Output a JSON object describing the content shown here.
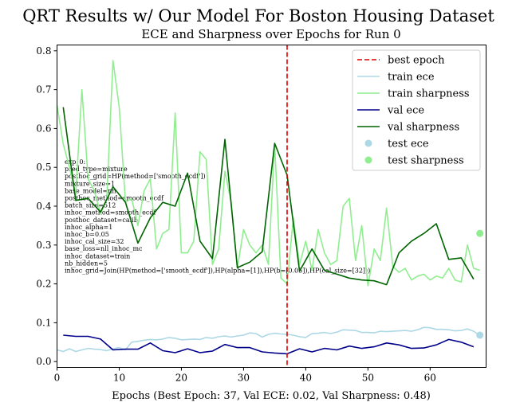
{
  "chart_data": {
    "type": "line",
    "suptitle": "QRT Results w/ Our Model For Boston Housing Dataset",
    "title": "ECE and Sharpness over Epochs for Run 0",
    "xlabel": "Epochs (Best Epoch: 37, Val ECE: 0.02, Val Sharpness: 0.48)",
    "ylabel": "",
    "xlim": [
      0,
      69
    ],
    "ylim": [
      -0.015,
      0.815
    ],
    "x_ticks": [
      0,
      10,
      20,
      30,
      40,
      50,
      60
    ],
    "y_ticks": [
      0.0,
      0.1,
      0.2,
      0.3,
      0.4,
      0.5,
      0.6,
      0.7,
      0.8
    ],
    "grid": false,
    "legend_position": "top-right",
    "best_epoch": 37,
    "colors": {
      "best_epoch": "#dd0000",
      "train_ece": "#add8e6",
      "train_sharpness": "#90ee90",
      "val_ece": "#00008b",
      "val_sharpness": "#006400",
      "test_ece": "#add8e6",
      "test_sharpness": "#90ee90"
    },
    "legend": [
      "best epoch",
      "train ece",
      "train sharpness",
      "val ece",
      "val sharpness",
      "test ece",
      "test sharpness"
    ],
    "series": [
      {
        "name": "train ece",
        "key": "train_ece",
        "x": [
          0,
          1,
          2,
          3,
          4,
          5,
          6,
          7,
          8,
          9,
          10,
          11,
          12,
          13,
          14,
          15,
          16,
          17,
          18,
          19,
          20,
          21,
          22,
          23,
          24,
          25,
          26,
          27,
          28,
          29,
          30,
          31,
          32,
          33,
          34,
          35,
          36,
          37,
          38,
          39,
          40,
          41,
          42,
          43,
          44,
          45,
          46,
          47,
          48,
          49,
          50,
          51,
          52,
          53,
          54,
          55,
          56,
          57,
          58,
          59,
          60,
          61,
          62,
          63,
          64,
          65,
          66,
          67,
          68
        ],
        "y": [
          0.03,
          0.026,
          0.033,
          0.026,
          0.03,
          0.034,
          0.032,
          0.031,
          0.028,
          0.033,
          0.036,
          0.03,
          0.05,
          0.052,
          0.055,
          0.057,
          0.056,
          0.058,
          0.062,
          0.06,
          0.056,
          0.057,
          0.058,
          0.057,
          0.062,
          0.06,
          0.064,
          0.066,
          0.063,
          0.066,
          0.068,
          0.074,
          0.072,
          0.063,
          0.07,
          0.073,
          0.071,
          0.07,
          0.068,
          0.064,
          0.062,
          0.072,
          0.073,
          0.075,
          0.072,
          0.076,
          0.082,
          0.081,
          0.08,
          0.075,
          0.075,
          0.074,
          0.078,
          0.077,
          0.078,
          0.079,
          0.08,
          0.078,
          0.082,
          0.088,
          0.087,
          0.083,
          0.083,
          0.082,
          0.079,
          0.08,
          0.084,
          0.078,
          0.067
        ]
      },
      {
        "name": "train sharpness",
        "key": "train_sharpness",
        "x": [
          0,
          1,
          2,
          3,
          4,
          5,
          6,
          7,
          8,
          9,
          10,
          11,
          12,
          13,
          14,
          15,
          16,
          17,
          18,
          19,
          20,
          21,
          22,
          23,
          24,
          25,
          26,
          27,
          28,
          29,
          30,
          31,
          32,
          33,
          34,
          35,
          36,
          37,
          38,
          39,
          40,
          41,
          42,
          43,
          44,
          45,
          46,
          47,
          48,
          49,
          50,
          51,
          52,
          53,
          54,
          55,
          56,
          57,
          58,
          59,
          60,
          61,
          62,
          63,
          64,
          65,
          66,
          67,
          68
        ],
        "y": [
          0.66,
          0.56,
          0.5,
          0.43,
          0.7,
          0.47,
          0.44,
          0.38,
          0.42,
          0.775,
          0.655,
          0.41,
          0.42,
          0.35,
          0.44,
          0.47,
          0.29,
          0.33,
          0.34,
          0.64,
          0.28,
          0.28,
          0.31,
          0.54,
          0.52,
          0.25,
          0.29,
          0.49,
          0.41,
          0.24,
          0.34,
          0.3,
          0.28,
          0.3,
          0.25,
          0.56,
          0.215,
          0.2,
          0.37,
          0.25,
          0.31,
          0.235,
          0.34,
          0.28,
          0.25,
          0.26,
          0.4,
          0.42,
          0.26,
          0.35,
          0.195,
          0.29,
          0.26,
          0.395,
          0.245,
          0.23,
          0.24,
          0.21,
          0.22,
          0.225,
          0.21,
          0.22,
          0.215,
          0.24,
          0.21,
          0.205,
          0.3,
          0.24,
          0.235
        ]
      },
      {
        "name": "val ece",
        "key": "val_ece",
        "x": [
          1,
          3,
          5,
          7,
          9,
          11,
          13,
          15,
          17,
          19,
          21,
          23,
          25,
          27,
          29,
          31,
          33,
          35,
          37,
          39,
          41,
          43,
          45,
          47,
          49,
          51,
          53,
          55,
          57,
          59,
          61,
          63,
          65,
          67
        ],
        "y": [
          0.068,
          0.065,
          0.065,
          0.058,
          0.03,
          0.032,
          0.032,
          0.048,
          0.028,
          0.023,
          0.033,
          0.023,
          0.027,
          0.044,
          0.036,
          0.036,
          0.025,
          0.022,
          0.02,
          0.033,
          0.025,
          0.034,
          0.03,
          0.04,
          0.034,
          0.038,
          0.048,
          0.043,
          0.034,
          0.035,
          0.043,
          0.057,
          0.05,
          0.038
        ]
      },
      {
        "name": "val sharpness",
        "key": "val_sharpness",
        "x": [
          1,
          3,
          5,
          7,
          9,
          11,
          13,
          15,
          17,
          19,
          21,
          23,
          25,
          27,
          29,
          31,
          33,
          35,
          37,
          39,
          41,
          43,
          45,
          47,
          49,
          51,
          53,
          55,
          57,
          59,
          61,
          63,
          65,
          67
        ],
        "y": [
          0.655,
          0.415,
          0.42,
          0.385,
          0.45,
          0.41,
          0.305,
          0.37,
          0.41,
          0.4,
          0.485,
          0.31,
          0.265,
          0.572,
          0.242,
          0.256,
          0.283,
          0.562,
          0.48,
          0.233,
          0.29,
          0.235,
          0.225,
          0.215,
          0.21,
          0.208,
          0.198,
          0.28,
          0.31,
          0.33,
          0.355,
          0.263,
          0.267,
          0.212
        ]
      }
    ],
    "test_points": [
      {
        "name": "test ece",
        "key": "test_ece",
        "x": 68,
        "y": 0.068
      },
      {
        "name": "test sharpness",
        "key": "test_sharpness",
        "x": 68,
        "y": 0.33
      }
    ],
    "annotation_lines": [
      "exp_0:",
      "pred_type=mixture",
      "posthoc_grid=HP(method=['smooth_ecdf'])",
      "mixture_size=1",
      "base_model=nn",
      "posthoc_method=smooth_ecdf",
      "batch_size=512",
      "inhoc_method=smooth_ecdf",
      "posthoc_dataset=calib",
      "inhoc_alpha=1",
      "inhoc_b=0.05",
      "inhoc_cal_size=32",
      "base_loss=nll_inhoc_mc",
      "inhoc_dataset=train",
      "nb_hidden=5",
      "inhoc_grid=Join(HP(method=['smooth_ecdf']),HP(alpha=[1]),HP(b=[0.05]),HP(cal_size=[32]))"
    ]
  }
}
